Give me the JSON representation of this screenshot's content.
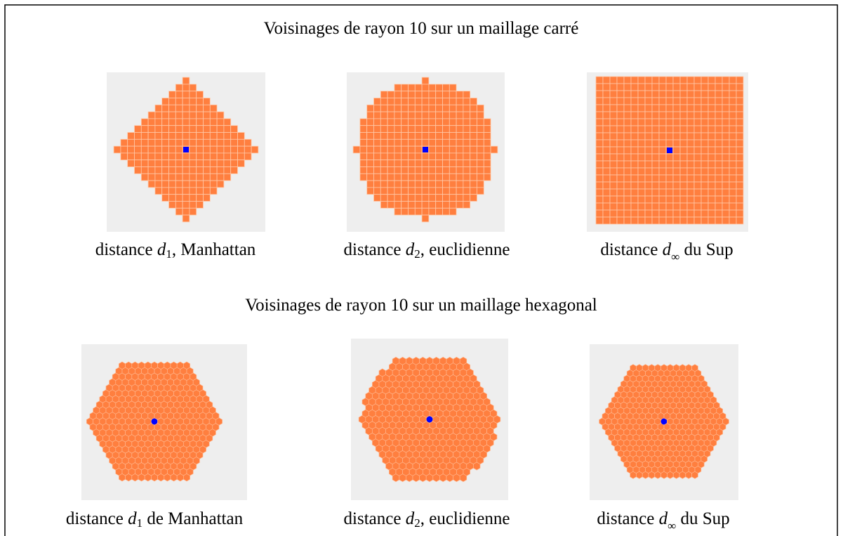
{
  "sections": [
    {
      "title": "Voisinages de rayon 10 sur un maillage carré",
      "panels": [
        {
          "caption": {
            "prefix": "distance ",
            "symbol": "d",
            "sub": "1",
            "suffix": ", Manhattan"
          }
        },
        {
          "caption": {
            "prefix": "distance ",
            "symbol": "d",
            "sub": "2",
            "suffix": ", euclidienne"
          }
        },
        {
          "caption": {
            "prefix": "distance ",
            "symbol": "d",
            "sub": "∞",
            "suffix": " du Sup"
          }
        }
      ]
    },
    {
      "title": "Voisinages de rayon 10 sur un maillage hexagonal",
      "panels": [
        {
          "caption": {
            "prefix": "distance ",
            "symbol": "d",
            "sub": "1",
            "suffix": " de Manhattan"
          }
        },
        {
          "caption": {
            "prefix": "distance ",
            "symbol": "d",
            "sub": "2",
            "suffix": ", euclidienne"
          }
        },
        {
          "caption": {
            "prefix": "distance ",
            "symbol": "d",
            "sub": "∞",
            "suffix": "  du Sup"
          }
        }
      ]
    }
  ]
}
